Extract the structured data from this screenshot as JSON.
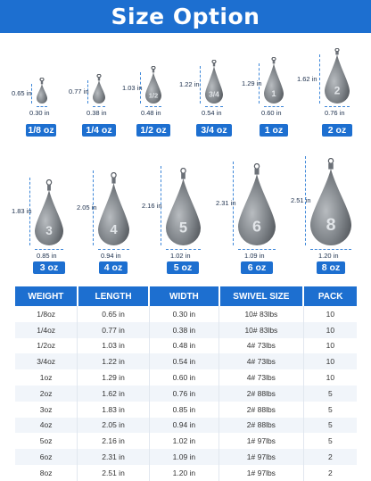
{
  "title": "Size Option",
  "row1": [
    {
      "height": "0.65 in",
      "width": "0.30 in",
      "weight": "1/8 oz",
      "mark": ""
    },
    {
      "height": "0.77 in",
      "width": "0.38 in",
      "weight": "1/4 oz",
      "mark": ""
    },
    {
      "height": "1.03 in",
      "width": "0.48 in",
      "weight": "1/2 oz",
      "mark": "1/2"
    },
    {
      "height": "1.22 in",
      "width": "0.54 in",
      "weight": "3/4 oz",
      "mark": "3/4"
    },
    {
      "height": "1.29 in",
      "width": "0.60 in",
      "weight": "1 oz",
      "mark": "1"
    },
    {
      "height": "1.62 in",
      "width": "0.76 in",
      "weight": "2 oz",
      "mark": "2"
    }
  ],
  "row2": [
    {
      "height": "1.83 in",
      "width": "0.85 in",
      "weight": "3 oz",
      "mark": "3"
    },
    {
      "height": "2.05 in",
      "width": "0.94 in",
      "weight": "4 oz",
      "mark": "4"
    },
    {
      "height": "2.16 in",
      "width": "1.02 in",
      "weight": "5 oz",
      "mark": "5"
    },
    {
      "height": "2.31 in",
      "width": "1.09 in",
      "weight": "6 oz",
      "mark": "6"
    },
    {
      "height": "2.51 in",
      "width": "1.20 in",
      "weight": "8 oz",
      "mark": "8"
    }
  ],
  "table": {
    "headers": [
      "WEIGHT",
      "LENGTH",
      "WIDTH",
      "SWIVEL SIZE",
      "PACK"
    ],
    "rows": [
      [
        "1/8oz",
        "0.65 in",
        "0.30 in",
        "10# 83lbs",
        "10"
      ],
      [
        "1/4oz",
        "0.77 in",
        "0.38 in",
        "10# 83lbs",
        "10"
      ],
      [
        "1/2oz",
        "1.03 in",
        "0.48 in",
        "4# 73lbs",
        "10"
      ],
      [
        "3/4oz",
        "1.22 in",
        "0.54 in",
        "4# 73lbs",
        "10"
      ],
      [
        "1oz",
        "1.29 in",
        "0.60 in",
        "4# 73lbs",
        "10"
      ],
      [
        "2oz",
        "1.62 in",
        "0.76 in",
        "2# 88lbs",
        "5"
      ],
      [
        "3oz",
        "1.83 in",
        "0.85 in",
        "2# 88lbs",
        "5"
      ],
      [
        "4oz",
        "2.05 in",
        "0.94 in",
        "2# 88lbs",
        "5"
      ],
      [
        "5oz",
        "2.16 in",
        "1.02 in",
        "1# 97lbs",
        "5"
      ],
      [
        "6oz",
        "2.31 in",
        "1.09 in",
        "1# 97lbs",
        "2"
      ],
      [
        "8oz",
        "2.51 in",
        "1.20 in",
        "1# 97lbs",
        "2"
      ]
    ]
  }
}
